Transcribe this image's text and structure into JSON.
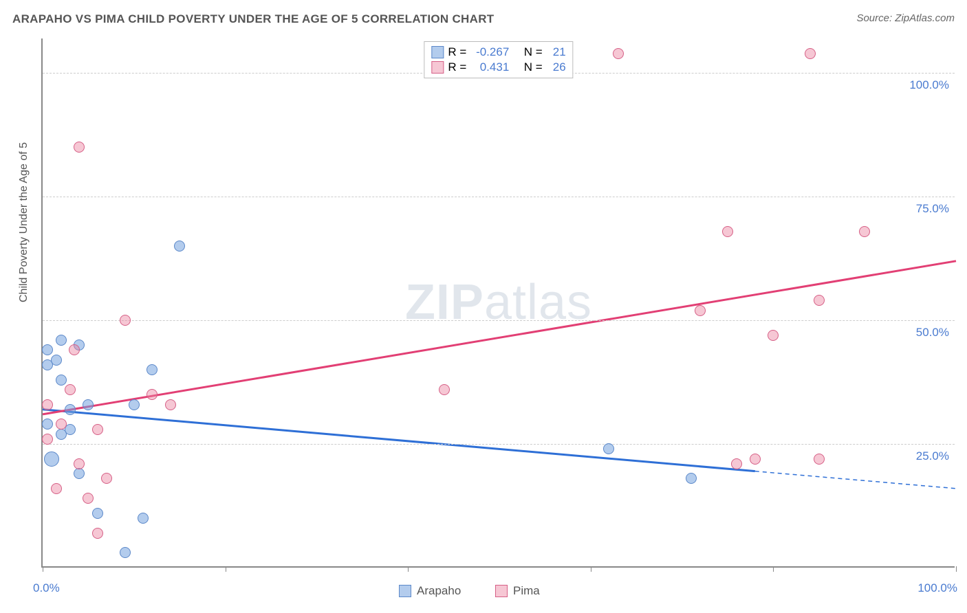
{
  "title": "ARAPAHO VS PIMA CHILD POVERTY UNDER THE AGE OF 5 CORRELATION CHART",
  "source": "Source: ZipAtlas.com",
  "y_axis_label": "Child Poverty Under the Age of 5",
  "watermark": {
    "zip": "ZIP",
    "atlas": "atlas"
  },
  "chart": {
    "type": "scatter",
    "xlim": [
      0,
      100
    ],
    "ylim": [
      0,
      107
    ],
    "y_ticks": [
      25,
      50,
      75,
      100
    ],
    "y_tick_labels": [
      "25.0%",
      "50.0%",
      "75.0%",
      "100.0%"
    ],
    "x_ticks": [
      0,
      20,
      40,
      60,
      80,
      100
    ],
    "x_tick_label_left": "0.0%",
    "x_tick_label_right": "100.0%",
    "grid_color": "#cccccc",
    "background": "#ffffff",
    "marker_size": 16,
    "marker_size_large": 22,
    "series": [
      {
        "name": "Arapaho",
        "fill": "rgba(116,162,222,0.55)",
        "stroke": "#5b88c9",
        "r_value": "-0.267",
        "n_value": "21",
        "trend": {
          "x1": 0,
          "y1": 32,
          "x2": 78,
          "y2": 19.5,
          "dash_from_x": 78,
          "dash_y2": 16,
          "color": "#2e6fd6",
          "width": 3
        },
        "points": [
          {
            "x": 0.5,
            "y": 44
          },
          {
            "x": 0.5,
            "y": 41
          },
          {
            "x": 2,
            "y": 46
          },
          {
            "x": 0.5,
            "y": 29
          },
          {
            "x": 1,
            "y": 22,
            "large": true
          },
          {
            "x": 3,
            "y": 32
          },
          {
            "x": 2,
            "y": 38
          },
          {
            "x": 4,
            "y": 45
          },
          {
            "x": 1.5,
            "y": 42
          },
          {
            "x": 3,
            "y": 28
          },
          {
            "x": 2,
            "y": 27
          },
          {
            "x": 5,
            "y": 33
          },
          {
            "x": 6,
            "y": 11
          },
          {
            "x": 9,
            "y": 3
          },
          {
            "x": 11,
            "y": 10
          },
          {
            "x": 10,
            "y": 33
          },
          {
            "x": 12,
            "y": 40
          },
          {
            "x": 15,
            "y": 65
          },
          {
            "x": 4,
            "y": 19
          },
          {
            "x": 62,
            "y": 24
          },
          {
            "x": 71,
            "y": 18
          }
        ]
      },
      {
        "name": "Pima",
        "fill": "rgba(235,130,160,0.45)",
        "stroke": "#d65f86",
        "r_value": "0.431",
        "n_value": "26",
        "trend": {
          "x1": 0,
          "y1": 31,
          "x2": 100,
          "y2": 62,
          "color": "#e23f74",
          "width": 3
        },
        "points": [
          {
            "x": 0.5,
            "y": 26
          },
          {
            "x": 0.5,
            "y": 33
          },
          {
            "x": 3,
            "y": 36
          },
          {
            "x": 4,
            "y": 21
          },
          {
            "x": 1.5,
            "y": 16
          },
          {
            "x": 5,
            "y": 14
          },
          {
            "x": 6,
            "y": 28
          },
          {
            "x": 4,
            "y": 85
          },
          {
            "x": 6,
            "y": 7
          },
          {
            "x": 7,
            "y": 18
          },
          {
            "x": 3.5,
            "y": 44
          },
          {
            "x": 9,
            "y": 50
          },
          {
            "x": 12,
            "y": 35
          },
          {
            "x": 14,
            "y": 33
          },
          {
            "x": 44,
            "y": 36
          },
          {
            "x": 63,
            "y": 104
          },
          {
            "x": 72,
            "y": 52
          },
          {
            "x": 75,
            "y": 68
          },
          {
            "x": 76,
            "y": 21
          },
          {
            "x": 78,
            "y": 22
          },
          {
            "x": 80,
            "y": 47
          },
          {
            "x": 84,
            "y": 104
          },
          {
            "x": 85,
            "y": 22
          },
          {
            "x": 85,
            "y": 54
          },
          {
            "x": 90,
            "y": 68
          },
          {
            "x": 2,
            "y": 29
          }
        ]
      }
    ]
  },
  "legend_top": {
    "r_label": "R =",
    "n_label": "N ="
  },
  "legend_bottom": {
    "items": [
      "Arapaho",
      "Pima"
    ]
  }
}
